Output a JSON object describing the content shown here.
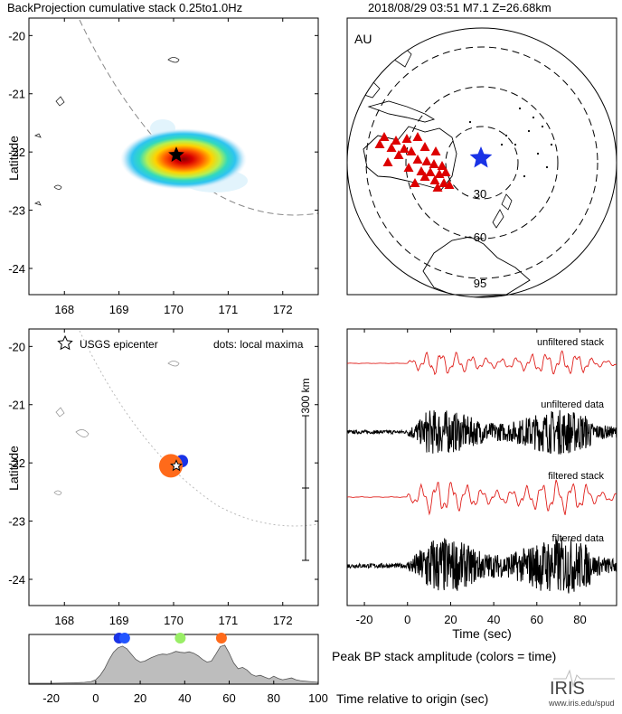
{
  "header": {
    "left_title": "BackProjection cumulative stack 0.25to1.0Hz",
    "right_title": "2018/08/29 03:51   M7.1   Z=26.68km"
  },
  "chart_data": [
    {
      "type": "heatmap",
      "name": "backprojection-map",
      "ylabel": "Latitude",
      "xlabel": "",
      "xlim": [
        167.35,
        172.65
      ],
      "ylim": [
        -24.45,
        -19.7
      ],
      "xticks": [
        168,
        169,
        170,
        171,
        172
      ],
      "yticks": [
        -20,
        -21,
        -22,
        -23,
        -24
      ],
      "peak": {
        "lon": 170.0,
        "lat": -22.05
      },
      "epicenter": {
        "lon": 170.05,
        "lat": -22.05
      }
    },
    {
      "type": "scatter",
      "name": "global-array-map",
      "region_label": "AU",
      "distance_rings": [
        "30",
        "60",
        "95"
      ],
      "stations_color": "#dd0000",
      "event_color": "#1a33e6"
    },
    {
      "type": "scatter",
      "name": "local-maxima-map",
      "ylabel": "Latitude",
      "legend_epicenter": "USGS epicenter",
      "legend_dots": "dots: local maxima",
      "scale_bar_label": "300 km",
      "xlim": [
        167.35,
        172.65
      ],
      "ylim": [
        -24.45,
        -19.7
      ],
      "xticks": [
        168,
        169,
        170,
        171,
        172
      ],
      "yticks": [
        -20,
        -21,
        -22,
        -23,
        -24
      ],
      "maxima": [
        {
          "lon": 170.15,
          "lat": -21.97,
          "color": "#1a33e6",
          "size": 14
        },
        {
          "lon": 170.05,
          "lat": -21.99,
          "color": "#2255ff",
          "size": 11
        },
        {
          "lon": 169.95,
          "lat": -22.05,
          "color": "#ff6a1a",
          "size": 26
        }
      ],
      "epicenter": {
        "lon": 170.05,
        "lat": -22.05
      }
    },
    {
      "type": "line",
      "name": "waveform-traces",
      "xlabel": "Time (sec)",
      "xlim": [
        -28,
        97
      ],
      "xticks": [
        -20,
        0,
        20,
        40,
        60,
        80
      ],
      "series": [
        {
          "name": "unfiltered stack",
          "color": "#e0201c"
        },
        {
          "name": "unfiltered data",
          "color": "#000000"
        },
        {
          "name": "filtered stack",
          "color": "#e0201c"
        },
        {
          "name": "filtered data",
          "color": "#000000"
        }
      ]
    },
    {
      "type": "area",
      "name": "peak-amplitude",
      "title": "Peak BP stack amplitude (colors = time)",
      "xlabel": "Time relative to origin (sec)",
      "xlim": [
        -30,
        100
      ],
      "xticks": [
        -20,
        0,
        20,
        40,
        60,
        80,
        100
      ],
      "x": [
        -30,
        -20,
        -10,
        -5,
        -2,
        0,
        2,
        4,
        6,
        8,
        10,
        12,
        14,
        16,
        18,
        20,
        22,
        25,
        28,
        30,
        32,
        34,
        36,
        38,
        40,
        42,
        44,
        46,
        48,
        50,
        52,
        54,
        56,
        58,
        60,
        62,
        64,
        66,
        68,
        70,
        72,
        74,
        76,
        78,
        80,
        82,
        84,
        86,
        88,
        90,
        92,
        94,
        96,
        98,
        100
      ],
      "y": [
        0.02,
        0.02,
        0.03,
        0.04,
        0.06,
        0.1,
        0.2,
        0.35,
        0.55,
        0.72,
        0.82,
        0.86,
        0.8,
        0.68,
        0.56,
        0.5,
        0.52,
        0.6,
        0.66,
        0.68,
        0.67,
        0.7,
        0.74,
        0.72,
        0.71,
        0.73,
        0.7,
        0.64,
        0.56,
        0.5,
        0.52,
        0.68,
        0.85,
        0.88,
        0.7,
        0.48,
        0.35,
        0.38,
        0.32,
        0.22,
        0.18,
        0.2,
        0.16,
        0.12,
        0.18,
        0.13,
        0.1,
        0.12,
        0.14,
        0.1,
        0.08,
        0.07,
        0.06,
        0.05,
        0.04
      ],
      "maxima": [
        {
          "t": 10.5,
          "color": "#1a33e6"
        },
        {
          "t": 13,
          "color": "#2255ff"
        },
        {
          "t": 38,
          "color": "#99ee66"
        },
        {
          "t": 56.5,
          "color": "#ff6a1a"
        }
      ]
    }
  ],
  "logo": {
    "text": "IRIS",
    "url_text": "www.iris.edu/spud"
  }
}
